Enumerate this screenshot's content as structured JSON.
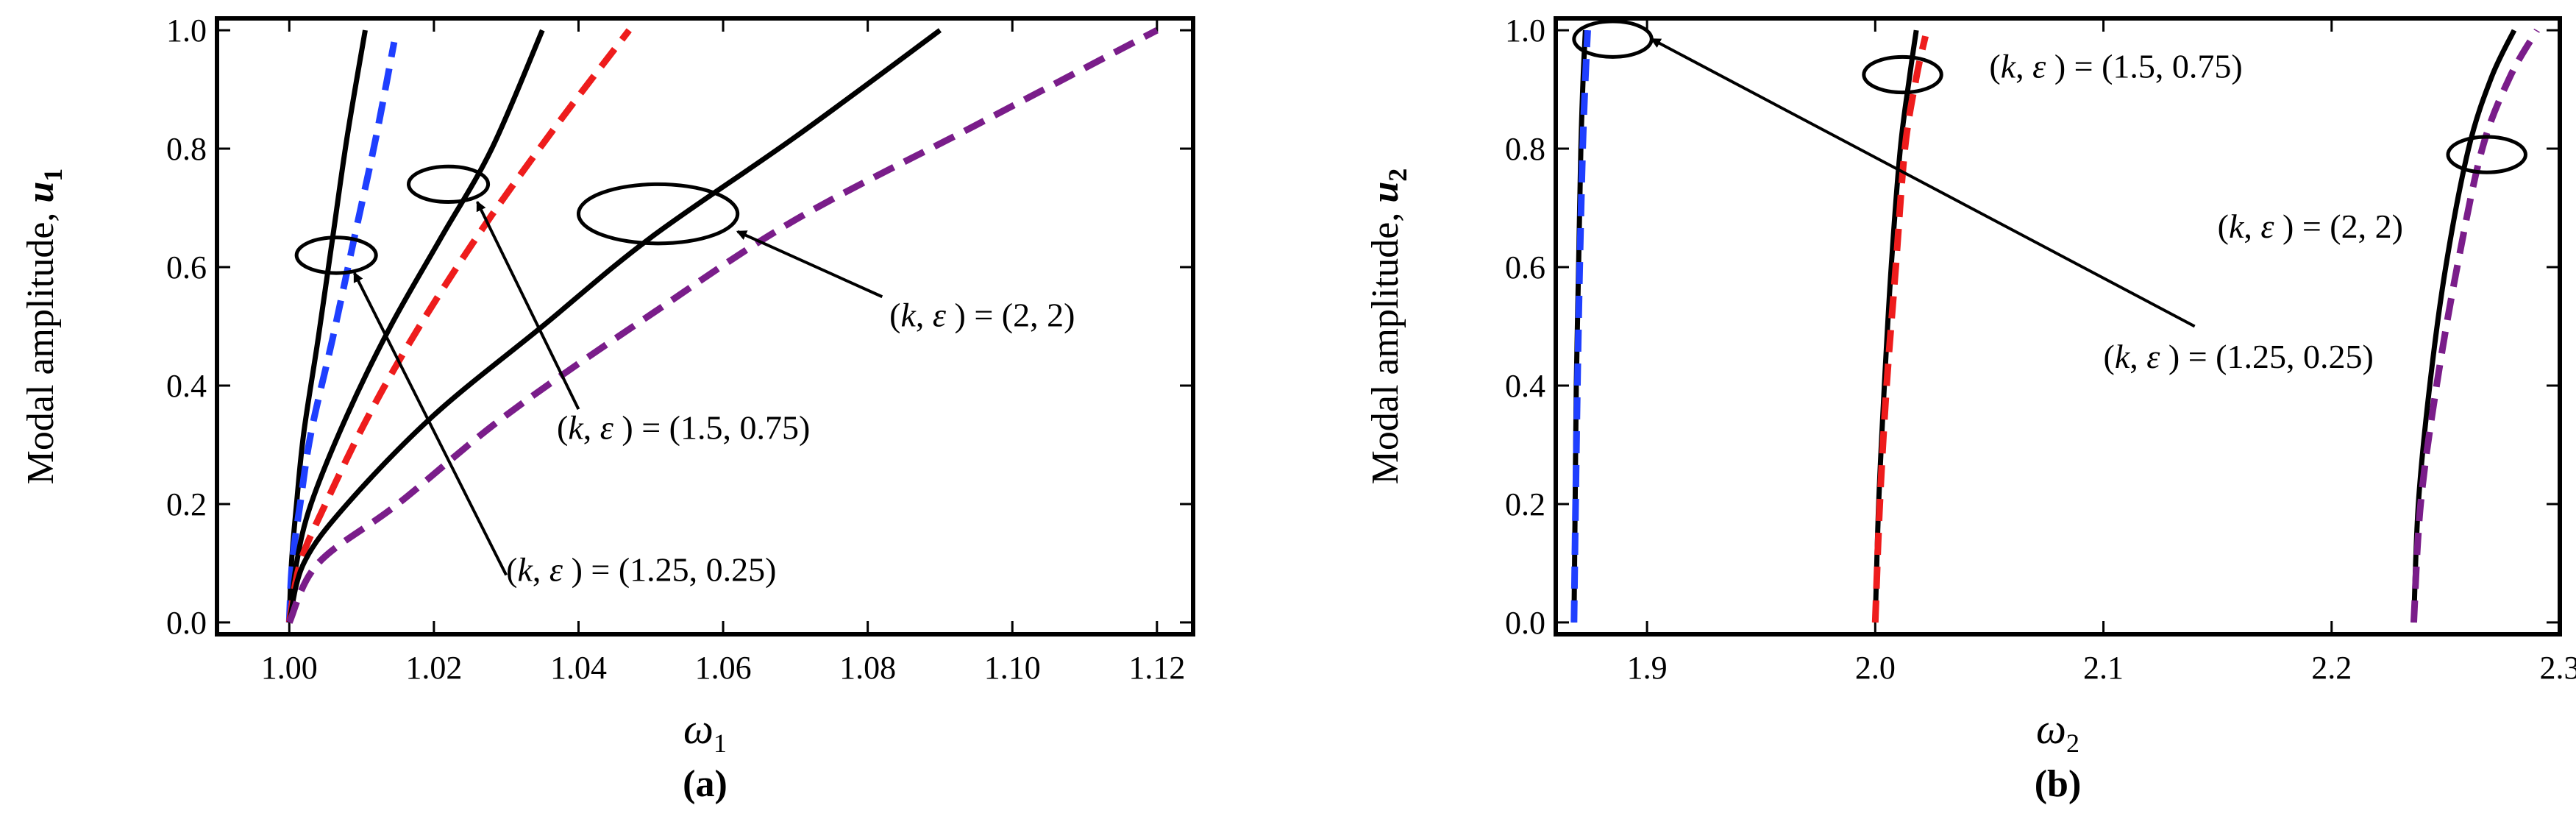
{
  "chart_data": [
    {
      "type": "line",
      "panel_label": "(a)",
      "xlabel": "ω",
      "xlabel_sub": "1",
      "ylabel": "Modal amplitude, ",
      "ylabel_var": "u",
      "ylabel_sub": "1",
      "xlim": [
        0.99,
        1.125
      ],
      "ylim": [
        -0.02,
        1.02
      ],
      "xticks": [
        1.0,
        1.02,
        1.04,
        1.06,
        1.08,
        1.1,
        1.12
      ],
      "xtick_labels": [
        "1.00",
        "1.02",
        "1.04",
        "1.06",
        "1.08",
        "1.10",
        "1.12"
      ],
      "yticks": [
        0.0,
        0.2,
        0.4,
        0.6,
        0.8,
        1.0
      ],
      "ytick_labels": [
        "0.0",
        "0.2",
        "0.4",
        "0.6",
        "0.8",
        "1.0"
      ],
      "series": [
        {
          "name": "(1.25, 0.25) solid",
          "color": "#000000",
          "dashed": false,
          "x": [
            1.0,
            1.0003,
            1.001,
            1.002,
            1.004,
            1.006,
            1.008,
            1.0105
          ],
          "y": [
            0.0,
            0.1,
            0.2,
            0.32,
            0.48,
            0.65,
            0.82,
            1.0
          ]
        },
        {
          "name": "(1.25, 0.25) dashed",
          "color": "#1f3fff",
          "dashed": true,
          "x": [
            1.0,
            1.0004,
            1.0015,
            1.003,
            1.006,
            1.009,
            1.012,
            1.0145
          ],
          "y": [
            0.0,
            0.1,
            0.2,
            0.32,
            0.48,
            0.65,
            0.82,
            0.98
          ]
        },
        {
          "name": "(1.5, 0.75) solid",
          "color": "#000000",
          "dashed": false,
          "x": [
            1.0,
            1.001,
            1.003,
            1.008,
            1.014,
            1.021,
            1.028,
            1.035
          ],
          "y": [
            0.0,
            0.1,
            0.2,
            0.35,
            0.5,
            0.65,
            0.8,
            1.0
          ]
        },
        {
          "name": "(1.5, 0.75) dashed",
          "color": "#ee1c1c",
          "dashed": true,
          "x": [
            1.0,
            1.0015,
            1.005,
            1.011,
            1.018,
            1.027,
            1.037,
            1.047
          ],
          "y": [
            0.0,
            0.1,
            0.2,
            0.35,
            0.5,
            0.67,
            0.84,
            1.0
          ]
        },
        {
          "name": "(2, 2) solid",
          "color": "#000000",
          "dashed": false,
          "x": [
            1.0,
            1.002,
            1.008,
            1.02,
            1.035,
            1.05,
            1.07,
            1.09
          ],
          "y": [
            0.0,
            0.1,
            0.2,
            0.35,
            0.5,
            0.65,
            0.82,
            1.0
          ]
        },
        {
          "name": "(2, 2) dashed",
          "color": "#7a1d8a",
          "dashed": true,
          "x": [
            1.0,
            1.004,
            1.015,
            1.03,
            1.05,
            1.07,
            1.095,
            1.12
          ],
          "y": [
            0.0,
            0.1,
            0.2,
            0.35,
            0.52,
            0.68,
            0.84,
            1.0
          ]
        }
      ],
      "ellipses": [
        {
          "cx": 1.0065,
          "cy": 0.62,
          "rx": 0.0055,
          "ry": 0.03
        },
        {
          "cx": 1.022,
          "cy": 0.74,
          "rx": 0.0055,
          "ry": 0.03
        },
        {
          "cx": 1.051,
          "cy": 0.69,
          "rx": 0.011,
          "ry": 0.05
        }
      ],
      "annotations": [
        {
          "text_pre": "(",
          "var1": "k",
          "sep": ", ",
          "var2": "ε",
          "text_post": " ) = (1.25, 0.25)",
          "text_x": 1.03,
          "text_y": 0.07,
          "arrow_from": [
            1.03,
            0.08
          ],
          "arrow_to": [
            1.009,
            0.59
          ]
        },
        {
          "text_pre": "(",
          "var1": "k",
          "sep": ", ",
          "var2": "ε",
          "text_post": " ) = (1.5, 0.75)",
          "text_x": 1.037,
          "text_y": 0.31,
          "arrow_from": [
            1.04,
            0.36
          ],
          "arrow_to": [
            1.026,
            0.71
          ]
        },
        {
          "text_pre": "(",
          "var1": "k",
          "sep": ", ",
          "var2": "ε",
          "text_post": " ) = (2, 2)",
          "text_x": 1.083,
          "text_y": 0.5,
          "arrow_from": [
            1.082,
            0.55
          ],
          "arrow_to": [
            1.062,
            0.66
          ]
        }
      ]
    },
    {
      "type": "line",
      "panel_label": "(b)",
      "xlabel": "ω",
      "xlabel_sub": "2",
      "ylabel": "Modal amplitude, ",
      "ylabel_var": "u",
      "ylabel_sub": "2",
      "xlim": [
        1.86,
        2.3
      ],
      "ylim": [
        -0.02,
        1.02
      ],
      "xticks": [
        1.9,
        2.0,
        2.1,
        2.2,
        2.3
      ],
      "xtick_labels": [
        "1.9",
        "2.0",
        "2.1",
        "2.2",
        "2.3"
      ],
      "yticks": [
        0.0,
        0.2,
        0.4,
        0.6,
        0.8,
        1.0
      ],
      "ytick_labels": [
        "0.0",
        "0.2",
        "0.4",
        "0.6",
        "0.8",
        "1.0"
      ],
      "series": [
        {
          "name": "(1.25, 0.25) solid",
          "color": "#000000",
          "dashed": false,
          "x": [
            1.868,
            1.8685,
            1.869,
            1.87,
            1.871,
            1.872,
            1.873
          ],
          "y": [
            0.0,
            0.2,
            0.4,
            0.6,
            0.8,
            0.92,
            1.0
          ]
        },
        {
          "name": "(1.25, 0.25) dashed",
          "color": "#1f3fff",
          "dashed": true,
          "x": [
            1.868,
            1.8687,
            1.8695,
            1.8705,
            1.8718,
            1.873,
            1.874
          ],
          "y": [
            0.0,
            0.2,
            0.4,
            0.6,
            0.8,
            0.92,
            1.0
          ]
        },
        {
          "name": "(1.5, 0.75) solid",
          "color": "#000000",
          "dashed": false,
          "x": [
            2.0,
            2.0015,
            2.004,
            2.007,
            2.011,
            2.015,
            2.018
          ],
          "y": [
            0.0,
            0.2,
            0.4,
            0.6,
            0.8,
            0.92,
            1.0
          ]
        },
        {
          "name": "(1.5, 0.75) dashed",
          "color": "#ee1c1c",
          "dashed": true,
          "x": [
            2.0,
            2.002,
            2.005,
            2.009,
            2.013,
            2.018,
            2.022
          ],
          "y": [
            0.0,
            0.2,
            0.4,
            0.6,
            0.8,
            0.92,
            0.99
          ]
        },
        {
          "name": "(2, 2) solid",
          "color": "#000000",
          "dashed": false,
          "x": [
            2.236,
            2.238,
            2.243,
            2.25,
            2.26,
            2.27,
            2.28
          ],
          "y": [
            0.0,
            0.2,
            0.4,
            0.6,
            0.8,
            0.92,
            1.0
          ]
        },
        {
          "name": "(2, 2) dashed",
          "color": "#7a1d8a",
          "dashed": true,
          "x": [
            2.236,
            2.239,
            2.246,
            2.255,
            2.266,
            2.278,
            2.29
          ],
          "y": [
            0.0,
            0.2,
            0.4,
            0.6,
            0.8,
            0.92,
            1.0
          ]
        }
      ],
      "ellipses": [
        {
          "cx": 1.885,
          "cy": 0.985,
          "rx": 0.017,
          "ry": 0.03
        },
        {
          "cx": 2.012,
          "cy": 0.925,
          "rx": 0.017,
          "ry": 0.03
        },
        {
          "cx": 2.268,
          "cy": 0.79,
          "rx": 0.017,
          "ry": 0.03
        }
      ],
      "annotations": [
        {
          "text_pre": "(",
          "var1": "k",
          "sep": ", ",
          "var2": "ε",
          "text_post": " ) = (1.5, 0.75)",
          "text_x": 2.05,
          "text_y": 0.92,
          "arrow_from": null,
          "arrow_to": null
        },
        {
          "text_pre": "(",
          "var1": "k",
          "sep": ", ",
          "var2": "ε",
          "text_post": " ) = (2, 2)",
          "text_x": 2.15,
          "text_y": 0.65,
          "arrow_from": null,
          "arrow_to": null
        },
        {
          "text_pre": "(",
          "var1": "k",
          "sep": ", ",
          "var2": "ε",
          "text_post": " ) = (1.25, 0.25)",
          "text_x": 2.1,
          "text_y": 0.43,
          "arrow_from": [
            2.14,
            0.5
          ],
          "arrow_to": [
            1.902,
            0.985
          ]
        }
      ]
    }
  ]
}
